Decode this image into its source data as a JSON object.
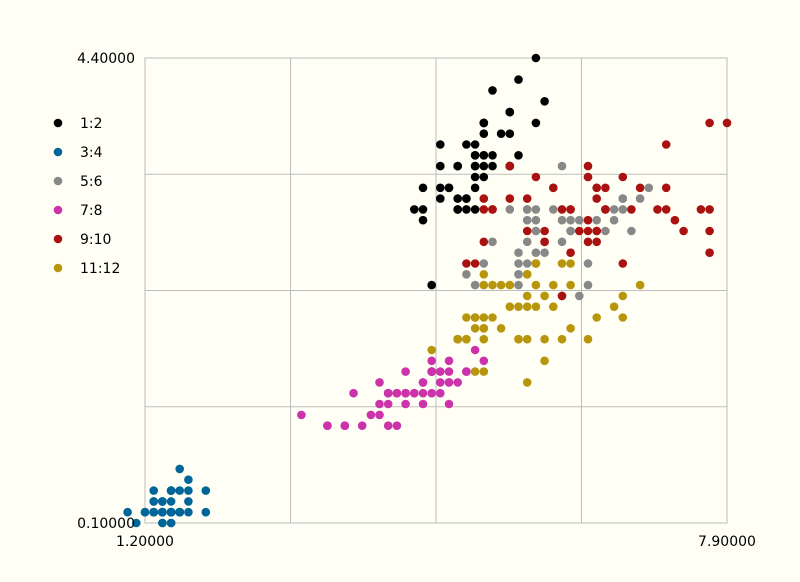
{
  "chart_data": {
    "type": "scatter",
    "xlim": [
      1.2,
      7.9
    ],
    "ylim": [
      0.1,
      4.4
    ],
    "x_tick_labels": [
      "1.20000",
      "7.90000"
    ],
    "y_tick_labels": [
      "0.10000",
      "4.40000"
    ],
    "grid": true,
    "legend_position": "left",
    "series": [
      {
        "name": "1:2",
        "color": "#000000",
        "points": [
          [
            5.1,
            3.5
          ],
          [
            4.9,
            3.0
          ],
          [
            4.7,
            3.2
          ],
          [
            4.6,
            3.1
          ],
          [
            5.0,
            3.6
          ],
          [
            5.4,
            3.9
          ],
          [
            4.6,
            3.4
          ],
          [
            5.0,
            3.4
          ],
          [
            4.4,
            2.9
          ],
          [
            4.9,
            3.1
          ],
          [
            5.4,
            3.7
          ],
          [
            4.8,
            3.4
          ],
          [
            4.8,
            3.0
          ],
          [
            4.3,
            3.0
          ],
          [
            5.8,
            4.0
          ],
          [
            5.7,
            4.4
          ],
          [
            5.4,
            3.9
          ],
          [
            5.1,
            3.5
          ],
          [
            5.7,
            3.8
          ],
          [
            5.1,
            3.8
          ],
          [
            5.4,
            3.4
          ],
          [
            5.1,
            3.7
          ],
          [
            4.6,
            3.6
          ],
          [
            5.1,
            3.3
          ],
          [
            4.8,
            3.4
          ],
          [
            5.0,
            3.0
          ],
          [
            5.0,
            3.4
          ],
          [
            5.2,
            3.5
          ],
          [
            5.2,
            3.4
          ],
          [
            4.7,
            3.2
          ],
          [
            4.8,
            3.1
          ],
          [
            5.4,
            3.4
          ],
          [
            5.2,
            4.1
          ],
          [
            5.5,
            4.2
          ],
          [
            4.9,
            3.1
          ],
          [
            5.0,
            3.2
          ],
          [
            5.5,
            3.5
          ],
          [
            4.9,
            3.6
          ],
          [
            4.4,
            3.0
          ],
          [
            5.1,
            3.4
          ],
          [
            5.0,
            3.5
          ],
          [
            4.5,
            2.3
          ],
          [
            4.4,
            3.2
          ],
          [
            5.0,
            3.5
          ],
          [
            5.1,
            3.8
          ],
          [
            4.8,
            3.0
          ],
          [
            5.1,
            3.8
          ],
          [
            4.6,
            3.2
          ],
          [
            5.3,
            3.7
          ],
          [
            5.0,
            3.3
          ]
        ]
      },
      {
        "name": "3:4",
        "color": "#006699",
        "points": [
          [
            1.4,
            0.2
          ],
          [
            1.4,
            0.2
          ],
          [
            1.3,
            0.2
          ],
          [
            1.5,
            0.2
          ],
          [
            1.4,
            0.2
          ],
          [
            1.7,
            0.4
          ],
          [
            1.4,
            0.3
          ],
          [
            1.5,
            0.2
          ],
          [
            1.4,
            0.2
          ],
          [
            1.5,
            0.1
          ],
          [
            1.5,
            0.2
          ],
          [
            1.6,
            0.2
          ],
          [
            1.4,
            0.1
          ],
          [
            1.1,
            0.1
          ],
          [
            1.2,
            0.2
          ],
          [
            1.5,
            0.4
          ],
          [
            1.3,
            0.4
          ],
          [
            1.4,
            0.3
          ],
          [
            1.7,
            0.3
          ],
          [
            1.5,
            0.3
          ],
          [
            1.7,
            0.2
          ],
          [
            1.5,
            0.4
          ],
          [
            1.0,
            0.2
          ],
          [
            1.7,
            0.5
          ],
          [
            1.9,
            0.2
          ],
          [
            1.6,
            0.2
          ],
          [
            1.6,
            0.4
          ],
          [
            1.5,
            0.2
          ],
          [
            1.4,
            0.2
          ],
          [
            1.6,
            0.2
          ],
          [
            1.6,
            0.2
          ],
          [
            1.5,
            0.4
          ],
          [
            1.5,
            0.1
          ],
          [
            1.4,
            0.2
          ],
          [
            1.5,
            0.2
          ],
          [
            1.2,
            0.2
          ],
          [
            1.3,
            0.2
          ],
          [
            1.4,
            0.1
          ],
          [
            1.3,
            0.2
          ],
          [
            1.5,
            0.2
          ],
          [
            1.3,
            0.3
          ],
          [
            1.3,
            0.3
          ],
          [
            1.3,
            0.2
          ],
          [
            1.6,
            0.6
          ],
          [
            1.9,
            0.4
          ],
          [
            1.4,
            0.3
          ],
          [
            1.6,
            0.2
          ],
          [
            1.4,
            0.2
          ],
          [
            1.5,
            0.2
          ],
          [
            1.4,
            0.2
          ]
        ]
      },
      {
        "name": "5:6",
        "color": "#888888",
        "points": [
          [
            7.0,
            3.2
          ],
          [
            6.4,
            3.2
          ],
          [
            6.9,
            3.1
          ],
          [
            5.5,
            2.3
          ],
          [
            6.5,
            2.8
          ],
          [
            5.7,
            2.8
          ],
          [
            6.3,
            3.3
          ],
          [
            4.9,
            2.4
          ],
          [
            6.6,
            2.9
          ],
          [
            5.2,
            2.7
          ],
          [
            5.0,
            2.0
          ],
          [
            5.9,
            3.0
          ],
          [
            6.0,
            2.2
          ],
          [
            6.1,
            2.9
          ],
          [
            5.6,
            2.9
          ],
          [
            6.7,
            3.1
          ],
          [
            5.6,
            3.0
          ],
          [
            5.8,
            2.7
          ],
          [
            6.2,
            2.2
          ],
          [
            5.6,
            2.5
          ],
          [
            5.9,
            3.2
          ],
          [
            6.1,
            2.8
          ],
          [
            6.3,
            2.5
          ],
          [
            6.1,
            2.8
          ],
          [
            6.4,
            2.9
          ],
          [
            6.6,
            3.0
          ],
          [
            6.8,
            2.8
          ],
          [
            6.7,
            3.0
          ],
          [
            6.0,
            2.9
          ],
          [
            5.7,
            2.6
          ],
          [
            5.5,
            2.4
          ],
          [
            5.5,
            2.4
          ],
          [
            5.8,
            2.7
          ],
          [
            6.0,
            2.7
          ],
          [
            5.4,
            3.0
          ],
          [
            6.0,
            3.4
          ],
          [
            6.7,
            3.1
          ],
          [
            6.3,
            2.3
          ],
          [
            5.6,
            3.0
          ],
          [
            5.5,
            2.5
          ],
          [
            5.5,
            2.6
          ],
          [
            6.1,
            3.0
          ],
          [
            5.8,
            2.6
          ],
          [
            5.0,
            2.3
          ],
          [
            5.6,
            2.7
          ],
          [
            5.7,
            3.0
          ],
          [
            5.7,
            2.9
          ],
          [
            6.2,
            2.9
          ],
          [
            5.1,
            2.5
          ],
          [
            5.7,
            2.8
          ]
        ]
      },
      {
        "name": "7:8",
        "color": "#cc33aa",
        "points": [
          [
            4.7,
            1.4
          ],
          [
            4.5,
            1.5
          ],
          [
            4.9,
            1.5
          ],
          [
            4.0,
            1.3
          ],
          [
            4.6,
            1.5
          ],
          [
            4.5,
            1.3
          ],
          [
            4.7,
            1.6
          ],
          [
            3.3,
            1.0
          ],
          [
            4.6,
            1.3
          ],
          [
            3.9,
            1.4
          ],
          [
            3.5,
            1.0
          ],
          [
            4.2,
            1.5
          ],
          [
            4.0,
            1.0
          ],
          [
            4.7,
            1.4
          ],
          [
            3.6,
            1.3
          ],
          [
            4.4,
            1.4
          ],
          [
            4.5,
            1.5
          ],
          [
            4.1,
            1.0
          ],
          [
            4.5,
            1.5
          ],
          [
            3.9,
            1.1
          ],
          [
            4.8,
            1.8
          ],
          [
            4.0,
            1.3
          ],
          [
            4.9,
            1.5
          ],
          [
            4.7,
            1.2
          ],
          [
            4.3,
            1.3
          ],
          [
            4.4,
            1.4
          ],
          [
            4.8,
            1.4
          ],
          [
            5.0,
            1.7
          ],
          [
            4.5,
            1.5
          ],
          [
            3.5,
            1.0
          ],
          [
            3.8,
            1.1
          ],
          [
            3.7,
            1.0
          ],
          [
            3.9,
            1.2
          ],
          [
            5.1,
            1.6
          ],
          [
            4.5,
            1.5
          ],
          [
            4.5,
            1.6
          ],
          [
            4.7,
            1.5
          ],
          [
            4.4,
            1.3
          ],
          [
            4.1,
            1.3
          ],
          [
            4.0,
            1.3
          ],
          [
            4.4,
            1.2
          ],
          [
            4.6,
            1.4
          ],
          [
            4.0,
            1.2
          ],
          [
            3.3,
            1.0
          ],
          [
            4.2,
            1.3
          ],
          [
            4.2,
            1.2
          ],
          [
            4.2,
            1.3
          ],
          [
            4.3,
            1.3
          ],
          [
            3.0,
            1.1
          ],
          [
            4.1,
            1.3
          ]
        ]
      },
      {
        "name": "9:10",
        "color": "#aa1111",
        "points": [
          [
            6.3,
            3.3
          ],
          [
            5.8,
            2.7
          ],
          [
            7.1,
            3.0
          ],
          [
            6.3,
            2.9
          ],
          [
            6.5,
            3.0
          ],
          [
            7.6,
            3.0
          ],
          [
            4.9,
            2.5
          ],
          [
            7.3,
            2.9
          ],
          [
            6.7,
            2.5
          ],
          [
            7.2,
            3.6
          ],
          [
            6.5,
            3.2
          ],
          [
            6.4,
            2.7
          ],
          [
            6.8,
            3.0
          ],
          [
            5.7,
            2.5
          ],
          [
            5.8,
            2.8
          ],
          [
            6.4,
            3.2
          ],
          [
            6.5,
            3.0
          ],
          [
            7.7,
            3.8
          ],
          [
            7.7,
            2.6
          ],
          [
            6.0,
            2.2
          ],
          [
            6.9,
            3.2
          ],
          [
            5.6,
            2.8
          ],
          [
            7.7,
            2.8
          ],
          [
            6.3,
            2.7
          ],
          [
            6.7,
            3.3
          ],
          [
            7.2,
            3.2
          ],
          [
            6.2,
            2.8
          ],
          [
            6.1,
            3.0
          ],
          [
            6.4,
            2.8
          ],
          [
            7.2,
            3.0
          ],
          [
            7.4,
            2.8
          ],
          [
            7.9,
            3.8
          ],
          [
            6.4,
            2.8
          ],
          [
            6.3,
            2.8
          ],
          [
            6.1,
            2.6
          ],
          [
            7.7,
            3.0
          ],
          [
            6.3,
            3.4
          ],
          [
            6.4,
            3.1
          ],
          [
            6.0,
            3.0
          ],
          [
            5.4,
            3.1
          ],
          [
            5.6,
            3.1
          ],
          [
            5.1,
            3.1
          ],
          [
            5.1,
            2.7
          ],
          [
            5.9,
            3.2
          ],
          [
            5.7,
            3.3
          ],
          [
            5.2,
            3.0
          ],
          [
            5.0,
            2.5
          ],
          [
            5.2,
            3.0
          ],
          [
            5.4,
            3.4
          ],
          [
            5.1,
            3.0
          ]
        ]
      },
      {
        "name": "11:12",
        "color": "#b8960c",
        "points": [
          [
            6.0,
            2.5
          ],
          [
            5.1,
            1.9
          ],
          [
            5.9,
            2.1
          ],
          [
            5.6,
            1.8
          ],
          [
            5.8,
            2.2
          ],
          [
            6.6,
            2.1
          ],
          [
            4.5,
            1.7
          ],
          [
            6.3,
            1.8
          ],
          [
            5.8,
            1.8
          ],
          [
            6.1,
            2.5
          ],
          [
            5.1,
            2.0
          ],
          [
            5.3,
            1.9
          ],
          [
            5.5,
            2.1
          ],
          [
            5.0,
            2.0
          ],
          [
            5.1,
            2.4
          ],
          [
            5.3,
            2.3
          ],
          [
            5.5,
            1.8
          ],
          [
            6.7,
            2.2
          ],
          [
            6.9,
            2.3
          ],
          [
            5.0,
            1.5
          ],
          [
            5.7,
            2.3
          ],
          [
            4.9,
            2.0
          ],
          [
            6.7,
            2.0
          ],
          [
            4.9,
            1.8
          ],
          [
            5.7,
            2.1
          ],
          [
            6.0,
            1.8
          ],
          [
            4.8,
            1.8
          ],
          [
            4.9,
            1.8
          ],
          [
            5.6,
            2.1
          ],
          [
            5.8,
            1.6
          ],
          [
            6.1,
            1.9
          ],
          [
            6.4,
            2.0
          ],
          [
            5.6,
            2.2
          ],
          [
            5.1,
            1.5
          ],
          [
            5.6,
            1.4
          ],
          [
            6.1,
            2.3
          ],
          [
            5.6,
            2.4
          ],
          [
            5.5,
            1.8
          ],
          [
            4.8,
            1.8
          ],
          [
            5.4,
            2.1
          ],
          [
            5.6,
            2.4
          ],
          [
            5.1,
            2.3
          ],
          [
            5.1,
            1.9
          ],
          [
            5.9,
            2.3
          ],
          [
            5.7,
            2.5
          ],
          [
            5.2,
            2.3
          ],
          [
            5.0,
            1.9
          ],
          [
            5.2,
            2.0
          ],
          [
            5.4,
            2.3
          ],
          [
            5.1,
            1.8
          ]
        ]
      }
    ]
  }
}
